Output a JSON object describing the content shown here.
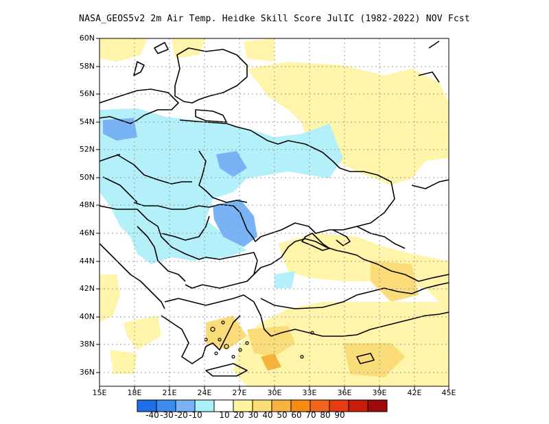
{
  "title": "NASA_GEOS5v2  2m Air Temp. Heidke Skill Score JulIC (1982-2022) NOV Fcst",
  "lat_labels": [
    "60N",
    "58N",
    "56N",
    "54N",
    "52N",
    "50N",
    "48N",
    "46N",
    "44N",
    "42N",
    "40N",
    "38N",
    "36N"
  ],
  "lon_labels": [
    "15E",
    "18E",
    "21E",
    "24E",
    "27E",
    "30E",
    "33E",
    "36E",
    "39E",
    "42E",
    "45E"
  ],
  "colorbar": {
    "labels": [
      "-40",
      "-30",
      "-20",
      "-10",
      "10",
      "20",
      "30",
      "40",
      "50",
      "60",
      "70",
      "80",
      "90"
    ],
    "colors": [
      "#1e6ee6",
      "#3c8cf0",
      "#78b4f5",
      "#aaf0fa",
      "#ffffff",
      "#fff5a0",
      "#fadc78",
      "#f5b43c",
      "#f58c14",
      "#f0641e",
      "#e63c14",
      "#c81e0a",
      "#a00a0a"
    ]
  },
  "palette": {
    "light_blue": "#b4f0fa",
    "mid_blue": "#78b4f5",
    "pale_yellow": "#fff5aa",
    "yellow": "#fadc78",
    "orange": "#f5b43c"
  }
}
